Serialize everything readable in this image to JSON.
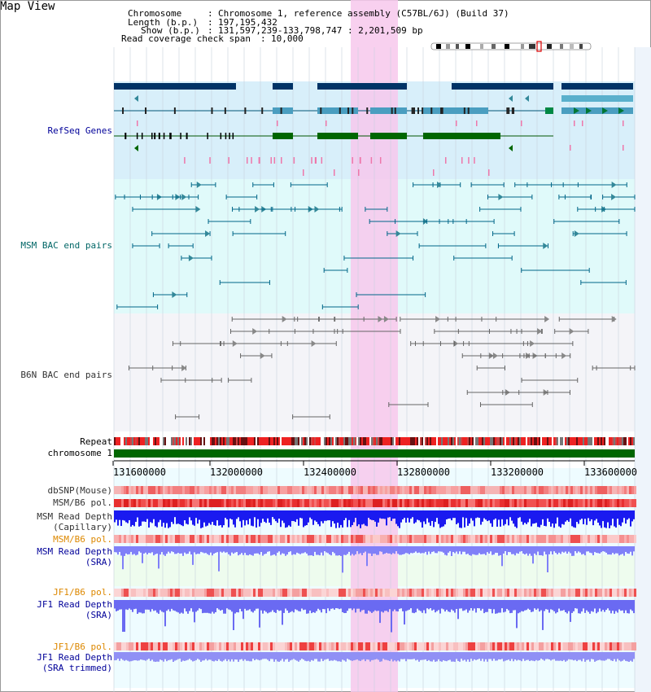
{
  "page": {
    "title": "Map View"
  },
  "header": {
    "chrom_label": "Chromosome",
    "chrom_value": "Chromosome 1, reference assembly (C57BL/6J) (Build 37)",
    "length_label": "Length (b.p.)",
    "length_value": "197,195,432",
    "show_label": "Show (b.p.)",
    "show_value": "131,597,239-133,798,747 : 2,201,509 bp",
    "span_label": "Read coverage check span",
    "span_value": "10,000"
  },
  "tracks": {
    "refseq": "RefSeq Genes",
    "msm_bac": "MSM BAC end pairs",
    "b6n_bac": "B6N BAC end pairs",
    "repeat": "Repeat",
    "chromosome": "chromosome 1",
    "dbsnp": "dbSNP(Mouse)",
    "msm_b6_pol_1": "MSM/B6 pol.",
    "msm_depth_cap_1": "MSM Read Depth",
    "msm_depth_cap_2": "(Capillary)",
    "msm_b6_pol_2": "MSM/B6 pol.",
    "msm_depth_sra_1": "MSM Read Depth",
    "msm_depth_sra_2": "(SRA)",
    "jf1_b6_pol_1": "JF1/B6 pol.",
    "jf1_depth_sra_1": "JF1 Read Depth",
    "jf1_depth_sra_2": "(SRA)",
    "jf1_b6_pol_2": "JF1/B6 pol.",
    "jf1_depth_trim_1": "JF1 Read Depth",
    "jf1_depth_trim_2": "(SRA trimmed)"
  },
  "axis": {
    "ticks": [
      "131600000",
      "132000000",
      "132400000",
      "132800000",
      "133200000",
      "133600000"
    ]
  },
  "colors": {
    "title_blue": "#000099",
    "teal": "#006666",
    "orange": "#dd8800",
    "refseq_bg": "#d8effa",
    "msm_bg": "#e0fafa",
    "b6n_bg": "#f4f4f8",
    "highlight": "#f7c8ec",
    "chromosome": "#006600",
    "depth_blue": "#1a1af0",
    "depth_light": "#8080f8",
    "pol_red": "#ee2222"
  }
}
